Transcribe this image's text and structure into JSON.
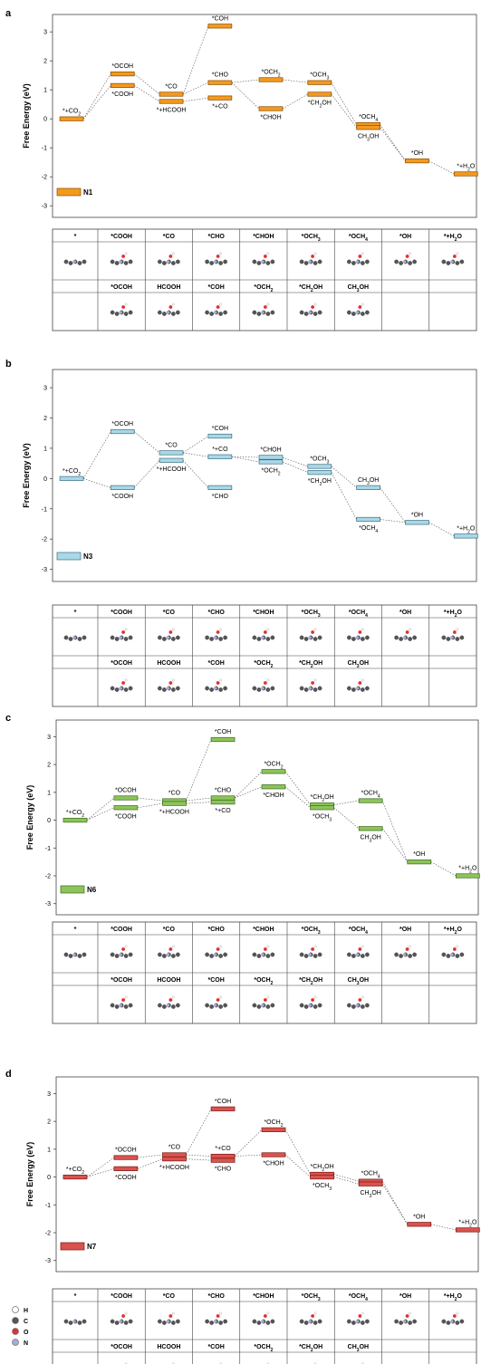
{
  "chart_data": [
    {
      "type": "line",
      "panel": "a",
      "ylabel": "Free Energy (eV)",
      "yticks": [
        "3",
        "2",
        "1",
        "0",
        "-1",
        "-2",
        "-3"
      ],
      "legend": "N1",
      "color": "#F39A1E",
      "stroke": "#8a4a00",
      "levels": [
        {
          "label": "*+CO2",
          "y": 0.0
        },
        {
          "label": "*OCOH",
          "y": 1.55
        },
        {
          "label": "*COOH",
          "y": 1.15
        },
        {
          "label": "*CO",
          "y": 0.85
        },
        {
          "label": "*+HCOOH",
          "y": 0.6
        },
        {
          "label": "*COH",
          "y": 3.2
        },
        {
          "label": "*CHO",
          "y": 1.25
        },
        {
          "label": "*+CO",
          "y": 0.72
        },
        {
          "label": "*OCH2",
          "y": 1.35
        },
        {
          "label": "*CHOH",
          "y": 0.35
        },
        {
          "label": "*OCH3",
          "y": 1.25
        },
        {
          "label": "*CH2OH",
          "y": 0.85
        },
        {
          "label": "*OCH4",
          "y": -0.2
        },
        {
          "label": "CH3OH",
          "y": -0.3
        },
        {
          "label": "*OH",
          "y": -1.45
        },
        {
          "label": "*+H2O",
          "y": -1.9
        }
      ]
    },
    {
      "type": "line",
      "panel": "b",
      "ylabel": "Free Energy (eV)",
      "yticks": [
        "3",
        "2",
        "1",
        "0",
        "-1",
        "-2",
        "-3"
      ],
      "legend": "N3",
      "color": "#A9D8E8",
      "stroke": "#3d6f80",
      "levels": [
        {
          "label": "*+CO2",
          "y": 0.0
        },
        {
          "label": "*OCOH",
          "y": 1.55
        },
        {
          "label": "*COOH",
          "y": -0.3
        },
        {
          "label": "*CO",
          "y": 0.85
        },
        {
          "label": "*+HCOOH",
          "y": 0.6
        },
        {
          "label": "*COH",
          "y": 1.4
        },
        {
          "label": "*+CO",
          "y": 0.72
        },
        {
          "label": "*CHO",
          "y": -0.3
        },
        {
          "label": "*CHOH",
          "y": 0.7
        },
        {
          "label": "*OCH2",
          "y": 0.55
        },
        {
          "label": "*OCH3",
          "y": 0.4
        },
        {
          "label": "*CH2OH",
          "y": 0.2
        },
        {
          "label": "CH3OH",
          "y": -0.3
        },
        {
          "label": "*OCH4",
          "y": -1.35
        },
        {
          "label": "*OH",
          "y": -1.45
        },
        {
          "label": "*+H2O",
          "y": -1.9
        }
      ]
    },
    {
      "type": "line",
      "panel": "c",
      "ylabel": "Free Energy (eV)",
      "yticks": [
        "3",
        "2",
        "1",
        "0",
        "-1",
        "-2",
        "-3"
      ],
      "legend": "N6",
      "color": "#8CC45A",
      "stroke": "#3f6a1e",
      "levels": [
        {
          "label": "*+CO2",
          "y": 0.0
        },
        {
          "label": "*OCOH",
          "y": 0.8
        },
        {
          "label": "*COOH",
          "y": 0.45
        },
        {
          "label": "*CO",
          "y": 0.7
        },
        {
          "label": "*+HCOOH",
          "y": 0.6
        },
        {
          "label": "*COH",
          "y": 2.9
        },
        {
          "label": "*CHO",
          "y": 0.8
        },
        {
          "label": "*+CO",
          "y": 0.65
        },
        {
          "label": "*OCH2",
          "y": 1.75
        },
        {
          "label": "*CHOH",
          "y": 1.2
        },
        {
          "label": "*CH2OH",
          "y": 0.55
        },
        {
          "label": "*OCH3",
          "y": 0.45
        },
        {
          "label": "*OCH4",
          "y": 0.7
        },
        {
          "label": "CH3OH",
          "y": -0.3
        },
        {
          "label": "*OH",
          "y": -1.5
        },
        {
          "label": "*+H2O",
          "y": -2.0
        }
      ]
    },
    {
      "type": "line",
      "panel": "d",
      "ylabel": "Free Energy (eV)",
      "yticks": [
        "3",
        "2",
        "1",
        "0",
        "-1",
        "-2",
        "-3"
      ],
      "legend": "N7",
      "color": "#D9534F",
      "stroke": "#7a1a16",
      "levels": [
        {
          "label": "*+CO2",
          "y": 0.0
        },
        {
          "label": "*OCOH",
          "y": 0.7
        },
        {
          "label": "*COOH",
          "y": 0.3
        },
        {
          "label": "*CO",
          "y": 0.8
        },
        {
          "label": "*+HCOOH",
          "y": 0.65
        },
        {
          "label": "*COH",
          "y": 2.45
        },
        {
          "label": "*+CO",
          "y": 0.75
        },
        {
          "label": "*CHO",
          "y": 0.6
        },
        {
          "label": "*OCH2",
          "y": 1.7
        },
        {
          "label": "*CHOH",
          "y": 0.8
        },
        {
          "label": "*CH2OH",
          "y": 0.1
        },
        {
          "label": "*OCH3",
          "y": 0.0
        },
        {
          "label": "*OCH4",
          "y": -0.15
        },
        {
          "label": "CH3OH",
          "y": -0.25
        },
        {
          "label": "*OH",
          "y": -1.7
        },
        {
          "label": "*+H2O",
          "y": -1.9
        }
      ]
    }
  ],
  "panels": [
    {
      "label": "a",
      "table_row1": [
        "*",
        "*COOH",
        "*CO",
        "*CHO",
        "*CHOH",
        "*OCH3",
        "*OCH4",
        "*OH",
        "*+H2O"
      ],
      "table_row2": [
        "",
        "*OCOH",
        "HCOOH",
        "*COH",
        "*OCH2",
        "*CH2OH",
        "CH3OH",
        "",
        ""
      ]
    },
    {
      "label": "b",
      "table_row1": [
        "*",
        "*COOH",
        "*CO",
        "*CHO",
        "*CHOH",
        "*OCH3",
        "*OCH4",
        "*OH",
        "*+H2O"
      ],
      "table_row2": [
        "",
        "*OCOH",
        "HCOOH",
        "*COH",
        "*OCH2",
        "*CH2OH",
        "CH3OH",
        "",
        ""
      ]
    },
    {
      "label": "c",
      "table_row1": [
        "*",
        "*COOH",
        "*CO",
        "*CHO",
        "*CHOH",
        "*OCH3",
        "*OCH4",
        "*OH",
        "*+H2O"
      ],
      "table_row2": [
        "",
        "*OCOH",
        "HCOOH",
        "*COH",
        "*OCH2",
        "*CH2OH",
        "CH3OH",
        "",
        ""
      ]
    },
    {
      "label": "d",
      "table_row1": [
        "*",
        "*COOH",
        "*CO",
        "*CHO",
        "*CHOH",
        "*OCH3",
        "*OCH4",
        "*OH",
        "*+H2O"
      ],
      "table_row2": [
        "",
        "*OCOH",
        "HCOOH",
        "*COH",
        "*OCH2",
        "*CH2OH",
        "CH3OH",
        "",
        ""
      ]
    }
  ],
  "atom_legend": [
    {
      "symbol": "H",
      "color": "#ffffff"
    },
    {
      "symbol": "C",
      "color": "#555555"
    },
    {
      "symbol": "O",
      "color": "#e03030"
    },
    {
      "symbol": "N",
      "color": "#a8acd8"
    }
  ]
}
